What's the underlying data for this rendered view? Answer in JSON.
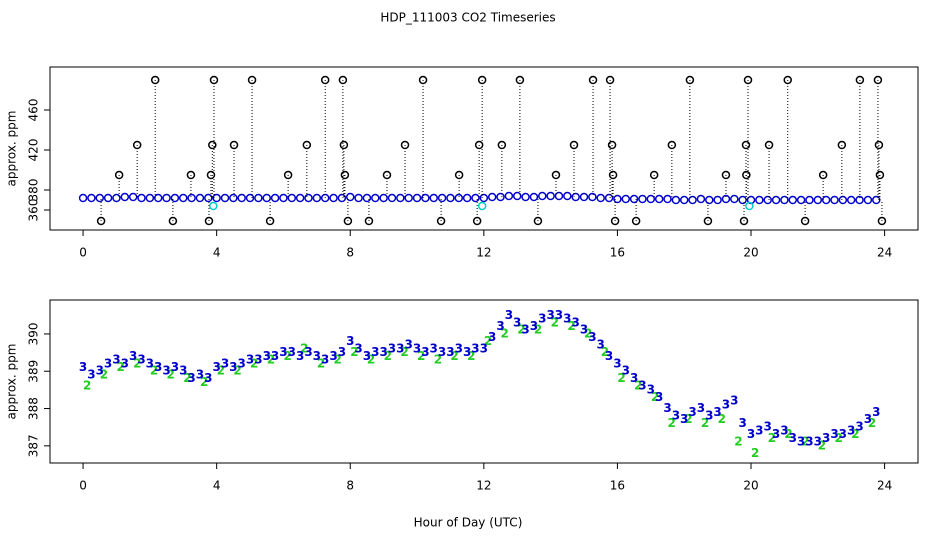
{
  "title": "HDP_111003  CO2 Timeseries",
  "xlabel": "Hour of Day (UTC)",
  "chart_data": [
    {
      "type": "scatter",
      "ylabel": "approx. ppm",
      "xlim": [
        -0.99,
        25.0
      ],
      "ylim": [
        340,
        503
      ],
      "xticks": [
        0,
        4,
        8,
        12,
        16,
        20,
        24
      ],
      "yticks": [
        360,
        380,
        420,
        460
      ],
      "series": [
        {
          "marker": "circle",
          "color": "#0000cc",
          "stems": false,
          "x": [
            0,
            0.25,
            0.5,
            0.75,
            1,
            1.25,
            1.5,
            1.75,
            2,
            2.25,
            2.5,
            2.75,
            3,
            3.25,
            3.5,
            3.75,
            4,
            4.25,
            4.5,
            4.75,
            5,
            5.25,
            5.5,
            5.75,
            6,
            6.25,
            6.5,
            6.75,
            7,
            7.25,
            7.5,
            7.75,
            8,
            8.25,
            8.5,
            8.75,
            9,
            9.25,
            9.5,
            9.75,
            10,
            10.25,
            10.5,
            10.75,
            11,
            11.25,
            11.5,
            11.75,
            12,
            12.25,
            12.5,
            12.75,
            13,
            13.25,
            13.5,
            13.75,
            14,
            14.25,
            14.5,
            14.75,
            15,
            15.25,
            15.5,
            15.75,
            16,
            16.25,
            16.5,
            16.75,
            17,
            17.25,
            17.5,
            17.75,
            18,
            18.25,
            18.5,
            18.75,
            19,
            19.25,
            19.5,
            19.75,
            20,
            20.25,
            20.5,
            20.75,
            21,
            21.25,
            21.5,
            21.75,
            22,
            22.25,
            22.5,
            22.75,
            23,
            23.25,
            23.5,
            23.75
          ],
          "values": [
            372,
            372,
            372,
            372,
            372,
            373,
            373,
            372,
            372,
            372,
            372,
            372,
            372,
            372,
            372,
            372,
            372,
            372,
            372,
            372,
            372,
            372,
            372,
            372,
            372,
            372,
            372,
            372,
            372,
            372,
            372,
            372,
            373,
            372,
            372,
            372,
            372,
            372,
            372,
            372,
            372,
            372,
            372,
            372,
            372,
            372,
            372,
            372,
            372,
            373,
            373,
            374,
            374,
            373,
            373,
            374,
            374,
            374,
            374,
            373,
            373,
            373,
            372,
            372,
            371,
            371,
            371,
            371,
            371,
            371,
            371,
            370,
            370,
            370,
            371,
            370,
            370,
            371,
            371,
            370,
            370,
            370,
            370,
            370,
            370,
            370,
            370,
            370,
            370,
            370,
            370,
            370,
            370,
            370,
            370,
            370
          ]
        },
        {
          "marker": "circle",
          "color": "#00cccc",
          "stems": false,
          "x": [
            3.9,
            11.95,
            19.95
          ],
          "values": [
            364,
            364,
            364
          ]
        },
        {
          "marker": "circle",
          "color": "#000000",
          "stems": true,
          "x": [
            0.54,
            1.08,
            1.62,
            2.16,
            2.69,
            3.23,
            3.77,
            3.83,
            3.87,
            3.92,
            4.52,
            5.06,
            5.6,
            6.14,
            6.7,
            7.25,
            7.78,
            7.81,
            7.84,
            7.93,
            8.56,
            9.1,
            9.64,
            10.18,
            10.72,
            11.26,
            11.8,
            11.86,
            11.95,
            12.54,
            13.08,
            13.62,
            14.16,
            14.7,
            15.27,
            15.78,
            15.84,
            15.87,
            15.93,
            16.56,
            17.1,
            17.63,
            18.17,
            18.71,
            19.25,
            19.79,
            19.85,
            19.86,
            19.91,
            20.54,
            21.1,
            21.62,
            22.16,
            22.72,
            23.26,
            23.8,
            23.83,
            23.86,
            23.92
          ],
          "values": [
            349,
            395,
            425,
            490,
            349,
            395,
            349,
            395,
            425,
            490,
            425,
            490,
            349,
            395,
            425,
            490,
            490,
            425,
            395,
            349,
            349,
            395,
            425,
            490,
            349,
            395,
            349,
            425,
            490,
            425,
            490,
            349,
            395,
            425,
            490,
            490,
            425,
            395,
            349,
            349,
            395,
            425,
            490,
            349,
            395,
            349,
            425,
            395,
            490,
            425,
            490,
            349,
            395,
            425,
            490,
            490,
            425,
            395,
            349
          ]
        }
      ]
    },
    {
      "type": "scatter",
      "ylabel": "approx. ppm",
      "xlim": [
        -0.99,
        25.0
      ],
      "ylim": [
        386.54,
        390.91
      ],
      "xticks": [
        0,
        4,
        8,
        12,
        16,
        20,
        24
      ],
      "yticks": [
        387,
        388,
        389,
        390
      ],
      "series": [
        {
          "marker": "2",
          "color": "#22cc22",
          "x": [
            0.125,
            0.625,
            1.125,
            1.625,
            2.125,
            2.625,
            3.125,
            3.625,
            4.125,
            4.625,
            5.125,
            5.625,
            6.125,
            6.625,
            7.125,
            7.625,
            8.125,
            8.625,
            9.125,
            9.625,
            10.125,
            10.625,
            11.125,
            11.625,
            12.125,
            12.625,
            13.125,
            13.625,
            14.125,
            14.625,
            15.125,
            15.625,
            16.125,
            16.625,
            17.125,
            17.625,
            18.125,
            18.625,
            19.125,
            19.625,
            20.125,
            20.625,
            21.125,
            21.625,
            22.125,
            22.625,
            23.125,
            23.625
          ],
          "values": [
            388.6,
            388.9,
            389.1,
            389.2,
            389.0,
            388.9,
            388.8,
            388.7,
            389.0,
            389.0,
            389.2,
            389.3,
            389.4,
            389.6,
            389.2,
            389.3,
            389.5,
            389.3,
            389.4,
            389.5,
            389.4,
            389.3,
            389.4,
            389.4,
            389.8,
            390.0,
            390.1,
            390.1,
            390.3,
            390.2,
            390.0,
            389.5,
            388.8,
            388.6,
            388.3,
            387.6,
            387.7,
            387.6,
            387.7,
            387.1,
            386.8,
            387.2,
            387.3,
            387.1,
            387.0,
            387.2,
            387.3,
            387.6
          ]
        },
        {
          "marker": "3",
          "color": "#0000cc",
          "x": [
            0,
            0.25,
            0.5,
            0.75,
            1,
            1.25,
            1.5,
            1.75,
            2,
            2.25,
            2.5,
            2.75,
            3,
            3.25,
            3.5,
            3.75,
            4,
            4.25,
            4.5,
            4.75,
            5,
            5.25,
            5.5,
            5.75,
            6,
            6.25,
            6.5,
            6.75,
            7,
            7.25,
            7.5,
            7.75,
            8,
            8.25,
            8.5,
            8.75,
            9,
            9.25,
            9.5,
            9.75,
            10,
            10.25,
            10.5,
            10.75,
            11,
            11.25,
            11.5,
            11.75,
            12,
            12.25,
            12.5,
            12.75,
            13,
            13.25,
            13.5,
            13.75,
            14,
            14.25,
            14.5,
            14.75,
            15,
            15.25,
            15.5,
            15.75,
            16,
            16.25,
            16.5,
            16.75,
            17,
            17.25,
            17.5,
            17.75,
            18,
            18.25,
            18.5,
            18.75,
            19,
            19.25,
            19.5,
            19.75,
            20,
            20.25,
            20.5,
            20.75,
            21,
            21.25,
            21.5,
            21.75,
            22,
            22.25,
            22.5,
            22.75,
            23,
            23.25,
            23.5,
            23.75
          ],
          "values": [
            389.1,
            388.9,
            389.0,
            389.2,
            389.3,
            389.2,
            389.4,
            389.3,
            389.2,
            389.1,
            389.0,
            389.1,
            389.0,
            388.8,
            388.9,
            388.8,
            389.1,
            389.2,
            389.1,
            389.2,
            389.3,
            389.3,
            389.4,
            389.4,
            389.5,
            389.5,
            389.4,
            389.5,
            389.4,
            389.3,
            389.4,
            389.5,
            389.8,
            389.6,
            389.4,
            389.5,
            389.5,
            389.6,
            389.6,
            389.7,
            389.6,
            389.5,
            389.6,
            389.5,
            389.5,
            389.6,
            389.5,
            389.6,
            389.6,
            389.9,
            390.2,
            390.5,
            390.3,
            390.1,
            390.2,
            390.4,
            390.5,
            390.5,
            390.4,
            390.3,
            390.1,
            389.9,
            389.7,
            389.4,
            389.2,
            389.0,
            388.8,
            388.6,
            388.5,
            388.3,
            388.0,
            387.8,
            387.7,
            387.9,
            388.0,
            387.8,
            387.9,
            388.1,
            388.2,
            387.6,
            387.3,
            387.4,
            387.5,
            387.3,
            387.4,
            387.2,
            387.1,
            387.1,
            387.1,
            387.2,
            387.3,
            387.3,
            387.4,
            387.5,
            387.7,
            387.9
          ]
        }
      ]
    }
  ]
}
